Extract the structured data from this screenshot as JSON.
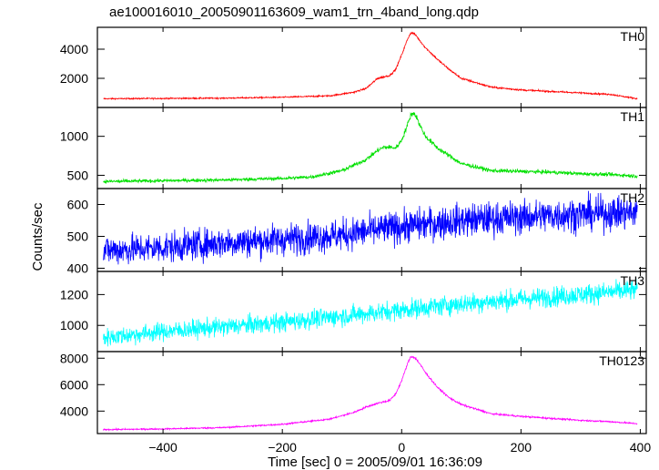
{
  "chart_data": {
    "type": "line",
    "title": "ae100016010_20050901163609_wam1_trn_4band_long.qdp",
    "xlabel": "Time [sec] 0 = 2005/09/01 16:36:09",
    "ylabel": "Counts/sec",
    "xlim": [
      -510,
      410
    ],
    "xticks": [
      -400,
      -200,
      0,
      200,
      400
    ],
    "xtick_labels": [
      "−400",
      "−200",
      "0",
      "200",
      "400"
    ],
    "grid": false,
    "series": [
      {
        "name": "TH0",
        "color": "#ff0000",
        "noise": 40,
        "ylim": [
          0,
          5500
        ],
        "yticks": [
          2000,
          4000
        ],
        "ytick_labels": [
          "2000",
          "4000"
        ],
        "x": [
          -500,
          -400,
          -300,
          -200,
          -120,
          -80,
          -60,
          -40,
          -30,
          -20,
          -10,
          0,
          10,
          15,
          20,
          25,
          30,
          40,
          60,
          80,
          100,
          150,
          200,
          250,
          300,
          350,
          395
        ],
        "y": [
          600,
          620,
          640,
          700,
          800,
          1050,
          1300,
          2000,
          2100,
          2200,
          2600,
          3600,
          4700,
          5100,
          5100,
          4900,
          4600,
          4100,
          3300,
          2600,
          2000,
          1400,
          1200,
          1100,
          1000,
          900,
          600
        ]
      },
      {
        "name": "TH1",
        "color": "#00e000",
        "noise": 20,
        "ylim": [
          330,
          1370
        ],
        "yticks": [
          500,
          1000
        ],
        "ytick_labels": [
          "500",
          "1000"
        ],
        "x": [
          -500,
          -400,
          -300,
          -200,
          -150,
          -100,
          -60,
          -40,
          -30,
          -20,
          -10,
          0,
          10,
          15,
          20,
          25,
          30,
          40,
          60,
          80,
          100,
          150,
          200,
          250,
          300,
          350,
          395
        ],
        "y": [
          420,
          430,
          440,
          460,
          480,
          560,
          700,
          820,
          860,
          860,
          850,
          950,
          1150,
          1270,
          1300,
          1250,
          1150,
          1000,
          850,
          750,
          650,
          560,
          550,
          540,
          520,
          510,
          490
        ]
      },
      {
        "name": "TH2",
        "color": "#0000ff",
        "noise": 45,
        "ylim": [
          390,
          650
        ],
        "yticks": [
          400,
          500,
          600
        ],
        "ytick_labels": [
          "400",
          "500",
          "600"
        ],
        "x": [
          -500,
          -400,
          -300,
          -200,
          -100,
          0,
          100,
          200,
          300,
          395
        ],
        "y": [
          455,
          465,
          480,
          490,
          505,
          530,
          550,
          560,
          570,
          575
        ]
      },
      {
        "name": "TH3",
        "color": "#00ffff",
        "noise": 55,
        "ylim": [
          830,
          1350
        ],
        "yticks": [
          1000,
          1200
        ],
        "ytick_labels": [
          "1000",
          "1200"
        ],
        "x": [
          -500,
          -400,
          -300,
          -200,
          -100,
          0,
          100,
          200,
          300,
          395
        ],
        "y": [
          920,
          960,
          990,
          1020,
          1060,
          1100,
          1140,
          1170,
          1200,
          1230
        ]
      },
      {
        "name": "TH0123",
        "color": "#ff00ff",
        "noise": 50,
        "ylim": [
          2300,
          8500
        ],
        "yticks": [
          4000,
          6000,
          8000
        ],
        "ytick_labels": [
          "4000",
          "6000",
          "8000"
        ],
        "x": [
          -500,
          -400,
          -300,
          -200,
          -120,
          -80,
          -60,
          -40,
          -30,
          -20,
          -10,
          0,
          10,
          15,
          20,
          25,
          30,
          40,
          60,
          80,
          100,
          150,
          200,
          250,
          300,
          350,
          395
        ],
        "y": [
          2600,
          2650,
          2750,
          3000,
          3400,
          3900,
          4300,
          4600,
          4700,
          4800,
          5300,
          6300,
          7600,
          8100,
          8100,
          7900,
          7600,
          6900,
          5800,
          5000,
          4500,
          3800,
          3600,
          3450,
          3300,
          3200,
          3050
        ]
      }
    ]
  }
}
